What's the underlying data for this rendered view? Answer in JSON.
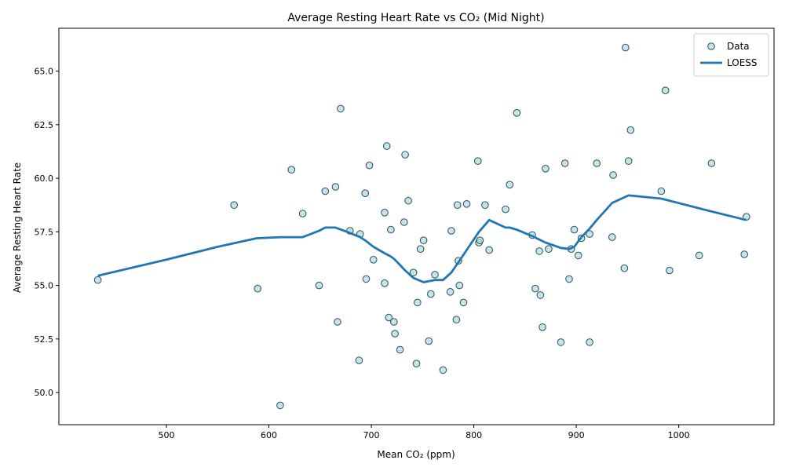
{
  "chart_data": {
    "type": "scatter",
    "title": "Average Resting Heart Rate vs CO₂ (Mid Night)",
    "xlabel": "Mean CO₂ (ppm)",
    "ylabel": "Average Resting Heart Rate",
    "xlim": [
      395,
      1093
    ],
    "ylim": [
      48.5,
      67.0
    ],
    "xticks": [
      500,
      600,
      700,
      800,
      900,
      1000
    ],
    "xtick_labels": [
      "500",
      "600",
      "700",
      "800",
      "900",
      "1000"
    ],
    "yticks": [
      50.0,
      52.5,
      55.0,
      57.5,
      60.0,
      62.5,
      65.0
    ],
    "ytick_labels": [
      "50.0",
      "52.5",
      "55.0",
      "57.5",
      "60.0",
      "62.5",
      "65.0"
    ],
    "grid": false,
    "legend_position": "top-right",
    "series": [
      {
        "name": "Data",
        "kind": "scatter",
        "marker_fill": "#add8e6",
        "marker_edge": "#2f4f4f",
        "points": [
          [
            433,
            55.25
          ],
          [
            566,
            58.75
          ],
          [
            589,
            54.85
          ],
          [
            611,
            49.4
          ],
          [
            622,
            60.4
          ],
          [
            633,
            58.35
          ],
          [
            649,
            55.0
          ],
          [
            655,
            59.4
          ],
          [
            665,
            59.6
          ],
          [
            667,
            53.3
          ],
          [
            670,
            63.25
          ],
          [
            679,
            57.55
          ],
          [
            688,
            51.5
          ],
          [
            689,
            57.4
          ],
          [
            694,
            59.3
          ],
          [
            695,
            55.3
          ],
          [
            698,
            60.6
          ],
          [
            702,
            56.2
          ],
          [
            713,
            55.1
          ],
          [
            713,
            58.4
          ],
          [
            715,
            61.5
          ],
          [
            717,
            53.5
          ],
          [
            719,
            57.6
          ],
          [
            722,
            53.3
          ],
          [
            723,
            52.75
          ],
          [
            728,
            52.0
          ],
          [
            732,
            57.95
          ],
          [
            733,
            61.1
          ],
          [
            736,
            58.95
          ],
          [
            741,
            55.6
          ],
          [
            744,
            51.35
          ],
          [
            745,
            54.2
          ],
          [
            748,
            56.7
          ],
          [
            751,
            57.1
          ],
          [
            756,
            52.4
          ],
          [
            758,
            54.6
          ],
          [
            762,
            55.5
          ],
          [
            770,
            51.05
          ],
          [
            777,
            54.7
          ],
          [
            778,
            57.55
          ],
          [
            783,
            53.4
          ],
          [
            784,
            58.75
          ],
          [
            785,
            56.15
          ],
          [
            786,
            55.0
          ],
          [
            790,
            54.2
          ],
          [
            793,
            58.8
          ],
          [
            804,
            60.8
          ],
          [
            805,
            57.0
          ],
          [
            806,
            57.1
          ],
          [
            811,
            58.75
          ],
          [
            815,
            56.65
          ],
          [
            831,
            58.55
          ],
          [
            835,
            59.7
          ],
          [
            842,
            63.05
          ],
          [
            857,
            57.35
          ],
          [
            860,
            54.85
          ],
          [
            864,
            56.6
          ],
          [
            865,
            54.55
          ],
          [
            867,
            53.05
          ],
          [
            870,
            60.45
          ],
          [
            873,
            56.7
          ],
          [
            885,
            52.35
          ],
          [
            889,
            60.7
          ],
          [
            893,
            55.3
          ],
          [
            895,
            56.7
          ],
          [
            898,
            57.6
          ],
          [
            902,
            56.4
          ],
          [
            905,
            57.2
          ],
          [
            913,
            57.4
          ],
          [
            913,
            52.35
          ],
          [
            920,
            60.7
          ],
          [
            935,
            57.25
          ],
          [
            936,
            60.15
          ],
          [
            947,
            55.8
          ],
          [
            948,
            66.1
          ],
          [
            951,
            60.8
          ],
          [
            953,
            62.25
          ],
          [
            983,
            59.4
          ],
          [
            987,
            64.1
          ],
          [
            991,
            55.7
          ],
          [
            1020,
            56.4
          ],
          [
            1032,
            60.7
          ],
          [
            1064,
            56.45
          ],
          [
            1066,
            58.2
          ]
        ]
      },
      {
        "name": "LOESS",
        "kind": "line",
        "color": "#1f77b4",
        "points": [
          [
            433,
            55.45
          ],
          [
            500,
            56.2
          ],
          [
            550,
            56.8
          ],
          [
            588,
            57.2
          ],
          [
            612,
            57.25
          ],
          [
            633,
            57.25
          ],
          [
            649,
            57.55
          ],
          [
            655,
            57.7
          ],
          [
            665,
            57.7
          ],
          [
            679,
            57.45
          ],
          [
            689,
            57.25
          ],
          [
            694,
            57.1
          ],
          [
            702,
            56.8
          ],
          [
            713,
            56.5
          ],
          [
            719,
            56.35
          ],
          [
            723,
            56.2
          ],
          [
            728,
            55.95
          ],
          [
            733,
            55.7
          ],
          [
            741,
            55.35
          ],
          [
            751,
            55.15
          ],
          [
            762,
            55.25
          ],
          [
            770,
            55.25
          ],
          [
            778,
            55.6
          ],
          [
            786,
            56.15
          ],
          [
            793,
            56.65
          ],
          [
            805,
            57.5
          ],
          [
            815,
            58.05
          ],
          [
            831,
            57.7
          ],
          [
            835,
            57.7
          ],
          [
            842,
            57.6
          ],
          [
            857,
            57.3
          ],
          [
            870,
            57.0
          ],
          [
            885,
            56.75
          ],
          [
            893,
            56.7
          ],
          [
            898,
            56.8
          ],
          [
            905,
            57.25
          ],
          [
            913,
            57.65
          ],
          [
            920,
            58.05
          ],
          [
            935,
            58.85
          ],
          [
            951,
            59.2
          ],
          [
            983,
            59.05
          ],
          [
            1032,
            58.45
          ],
          [
            1066,
            58.05
          ]
        ]
      }
    ]
  }
}
